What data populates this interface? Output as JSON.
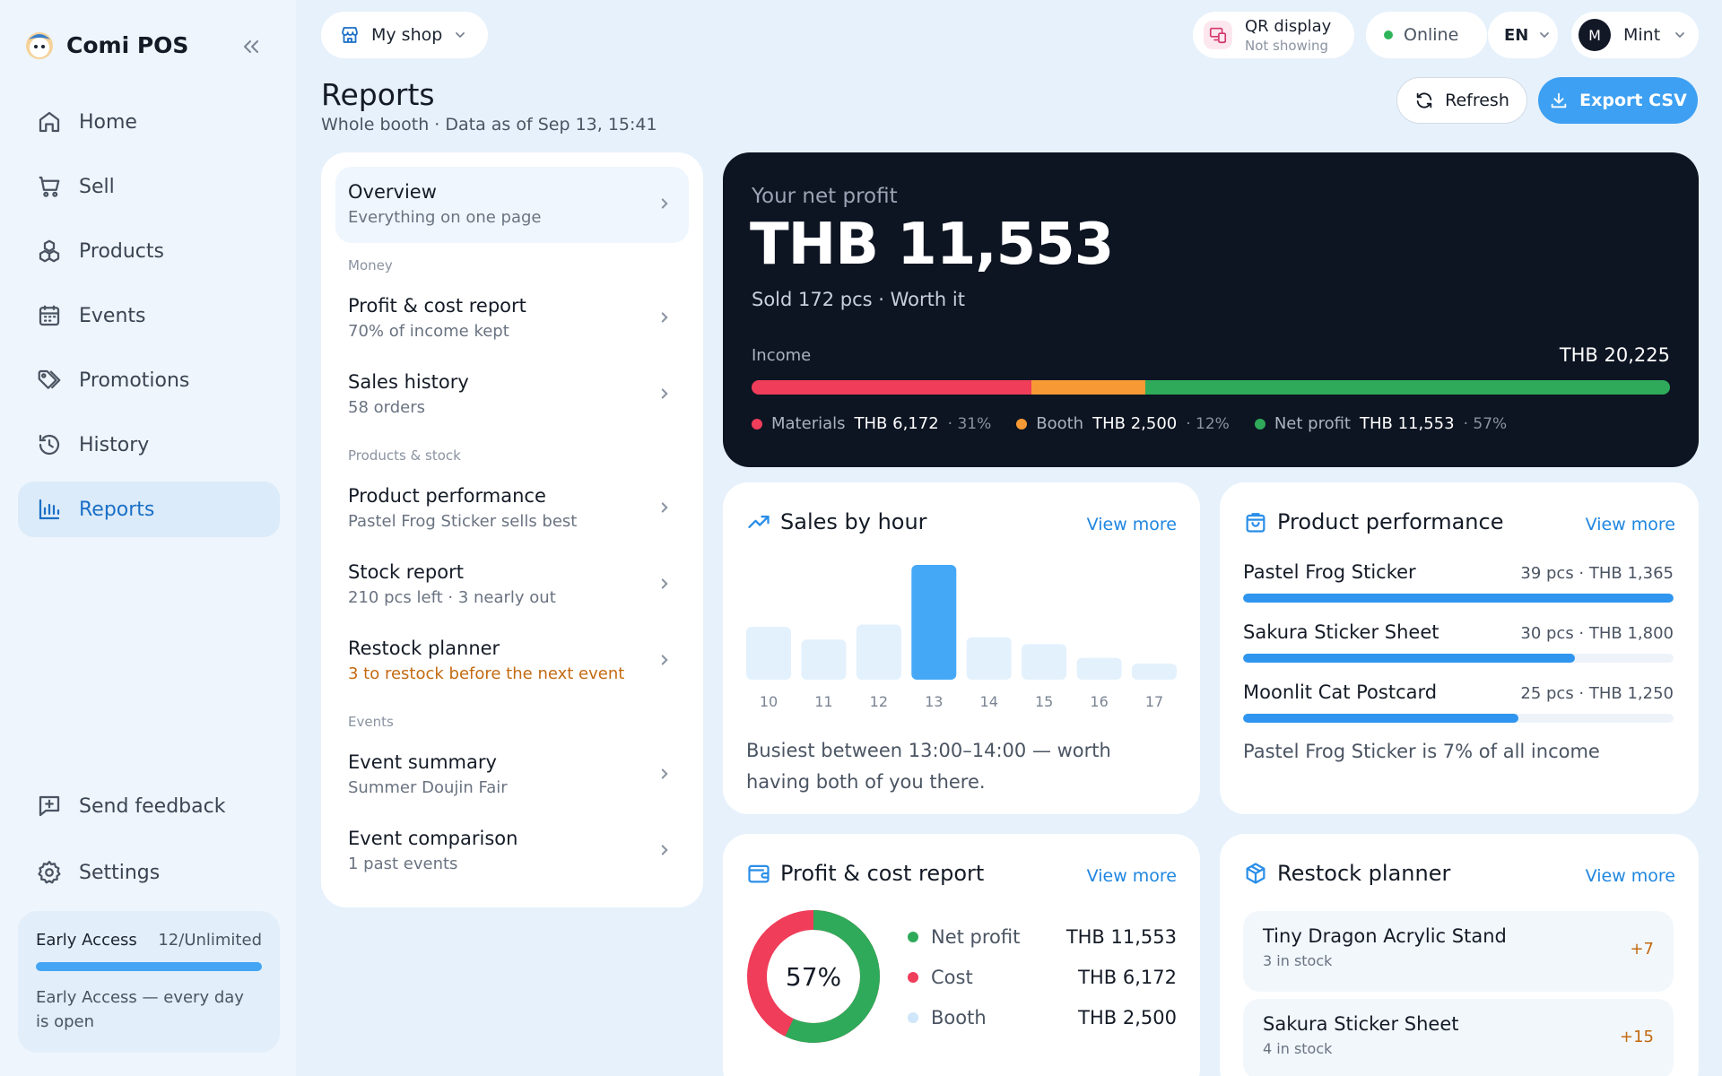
{
  "app": {
    "name": "Comi POS"
  },
  "sidebar": {
    "items": [
      {
        "label": "Home",
        "icon": "home-icon"
      },
      {
        "label": "Sell",
        "icon": "cart-icon"
      },
      {
        "label": "Products",
        "icon": "boxes-icon"
      },
      {
        "label": "Events",
        "icon": "calendar-icon"
      },
      {
        "label": "Promotions",
        "icon": "tags-icon"
      },
      {
        "label": "History",
        "icon": "history-icon"
      },
      {
        "label": "Reports",
        "icon": "bar-chart-icon",
        "active": true
      }
    ],
    "bottom": [
      {
        "label": "Send feedback",
        "icon": "feedback-icon"
      },
      {
        "label": "Settings",
        "icon": "gear-icon"
      }
    ],
    "early_access": {
      "title": "Early Access",
      "count": "12/Unlimited",
      "progress": 1.0,
      "text": "Early Access — every day is open"
    }
  },
  "topbar": {
    "shop": "My shop",
    "qr_title": "QR display",
    "qr_status": "Not showing",
    "status": "Online",
    "status_color": "#2fb45a",
    "lang": "EN",
    "avatar_initial": "M",
    "user": "Mint"
  },
  "page": {
    "title": "Reports",
    "subtitle": "Whole booth · Data as of Sep 13, 15:41",
    "refresh_label": "Refresh",
    "export_label": "Export CSV"
  },
  "report_list": {
    "overview": {
      "title": "Overview",
      "sub": "Everything on one page"
    },
    "sections": {
      "money": "Money",
      "products": "Products & stock",
      "events": "Events"
    },
    "items": {
      "profit": {
        "title": "Profit & cost report",
        "sub": "70% of income kept"
      },
      "sales": {
        "title": "Sales history",
        "sub": "58 orders"
      },
      "perf": {
        "title": "Product performance",
        "sub": "Pastel Frog Sticker sells best"
      },
      "stock": {
        "title": "Stock report",
        "sub": "210 pcs left · 3 nearly out"
      },
      "restock": {
        "title": "Restock planner",
        "sub": "3 to restock before the next event"
      },
      "event_summary": {
        "title": "Event summary",
        "sub": "Summer Doujin Fair"
      },
      "event_compare": {
        "title": "Event comparison",
        "sub": "1 past events"
      }
    }
  },
  "hero": {
    "label": "Your net profit",
    "value": "THB 11,553",
    "sub": "Sold 172 pcs · Worth it",
    "income_label": "Income",
    "income_value": "THB 20,225",
    "segments": [
      {
        "label": "Materials",
        "value": "THB 6,172",
        "pct": "31%",
        "share": 0.305,
        "color": "#ef3d5a"
      },
      {
        "label": "Booth",
        "value": "THB 2,500",
        "pct": "12%",
        "share": 0.124,
        "color": "#f79a35"
      },
      {
        "label": "Net profit",
        "value": "THB 11,553",
        "pct": "57%",
        "share": 0.571,
        "color": "#2faa5a"
      }
    ]
  },
  "sales_by_hour": {
    "title": "Sales by hour",
    "view_more": "View more",
    "note": "Busiest between 13:00–14:00 — worth having both of you there.",
    "chart_data": {
      "type": "bar",
      "categories": [
        "10",
        "11",
        "12",
        "13",
        "14",
        "15",
        "16",
        "17"
      ],
      "values": [
        46,
        35,
        48,
        100,
        37,
        31,
        19,
        14
      ],
      "highlight_index": 3,
      "color": "#45a8f7",
      "muted_color": "#e3f1fd"
    }
  },
  "product_performance": {
    "title": "Product performance",
    "view_more": "View more",
    "rows": [
      {
        "name": "Pastel Frog Sticker",
        "meta": "39 pcs · THB 1,365",
        "share": 1.0
      },
      {
        "name": "Sakura Sticker Sheet",
        "meta": "30 pcs · THB 1,800",
        "share": 0.77
      },
      {
        "name": "Moonlit Cat Postcard",
        "meta": "25 pcs · THB 1,250",
        "share": 0.64
      }
    ],
    "note": "Pastel Frog Sticker is 7% of all income"
  },
  "profit_cost": {
    "title": "Profit & cost report",
    "view_more": "View more",
    "center": "57%",
    "rows": [
      {
        "label": "Net profit",
        "value": "THB 11,553",
        "color": "#2faa5a",
        "share": 0.57
      },
      {
        "label": "Cost",
        "value": "THB 6,172",
        "color": "#ef3d5a",
        "share": 0.43
      },
      {
        "label": "Booth",
        "value": "THB 2,500",
        "color": "#cfe6fb"
      }
    ]
  },
  "restock": {
    "title": "Restock planner",
    "view_more": "View more",
    "items": [
      {
        "name": "Tiny Dragon Acrylic Stand",
        "stock": "3 in stock",
        "add": "+7"
      },
      {
        "name": "Sakura Sticker Sheet",
        "stock": "4 in stock",
        "add": "+15"
      }
    ]
  }
}
